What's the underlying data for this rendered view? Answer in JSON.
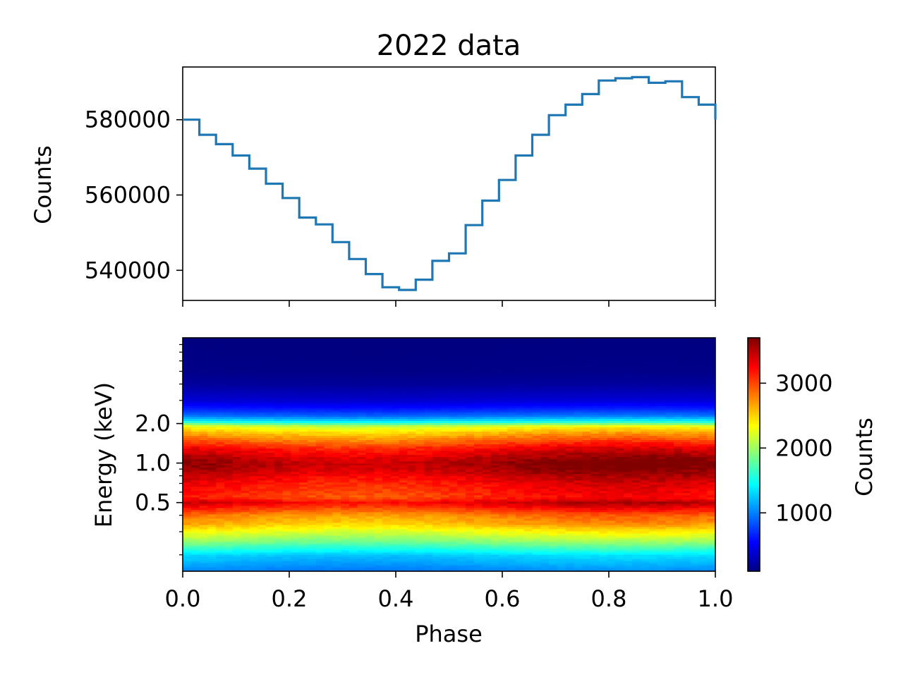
{
  "chart_data": [
    {
      "type": "line",
      "drawstyle": "steps-post",
      "title": "2022 data",
      "xlabel": "",
      "ylabel": "Counts",
      "xlim": [
        0.0,
        1.0
      ],
      "ylim": [
        532000,
        594000
      ],
      "yticks": [
        540000,
        560000,
        580000
      ],
      "ytick_labels": [
        "540000",
        "560000",
        "580000"
      ],
      "color": "#1f77b4",
      "series": [
        {
          "name": "Counts",
          "bin_edges": [
            0.0,
            0.03125,
            0.0625,
            0.09375,
            0.125,
            0.15625,
            0.1875,
            0.21875,
            0.25,
            0.28125,
            0.3125,
            0.34375,
            0.375,
            0.40625,
            0.4375,
            0.46875,
            0.5,
            0.53125,
            0.5625,
            0.59375,
            0.625,
            0.65625,
            0.6875,
            0.71875,
            0.75,
            0.78125,
            0.8125,
            0.84375,
            0.875,
            0.90625,
            0.9375,
            0.96875,
            1.0
          ],
          "values": [
            580000,
            576000,
            573500,
            570500,
            567000,
            563000,
            559200,
            554000,
            552200,
            547500,
            543000,
            539000,
            535500,
            534800,
            537500,
            542500,
            544500,
            552000,
            558500,
            564000,
            570500,
            576000,
            581200,
            584000,
            586800,
            590400,
            591000,
            591300,
            589800,
            590200,
            586000,
            584000
          ]
        }
      ]
    },
    {
      "type": "heatmap",
      "xlabel": "Phase",
      "ylabel": "Energy (keV)",
      "xlim": [
        0.0,
        1.0
      ],
      "ylim": [
        0.15,
        9.0
      ],
      "yscale": "log",
      "xticks": [
        0.0,
        0.2,
        0.4,
        0.6,
        0.8,
        1.0
      ],
      "xtick_labels": [
        "0.0",
        "0.2",
        "0.4",
        "0.6",
        "0.8",
        "1.0"
      ],
      "yticks": [
        0.5,
        1.0,
        2.0
      ],
      "ytick_labels": [
        "0.5",
        "1.0",
        "2.0"
      ],
      "colormap": "jet",
      "colorbar": {
        "label": "Counts",
        "range": [
          100,
          3700
        ],
        "ticks": [
          1000,
          2000,
          3000
        ],
        "tick_labels": [
          "1000",
          "2000",
          "3000"
        ]
      },
      "spectrum_profile": {
        "energy_keV": [
          0.15,
          0.2,
          0.25,
          0.3,
          0.35,
          0.4,
          0.45,
          0.5,
          0.55,
          0.6,
          0.7,
          0.8,
          0.9,
          1.0,
          1.1,
          1.3,
          1.5,
          1.7,
          1.9,
          2.1,
          2.3,
          2.6,
          3.0,
          4.0,
          5.0,
          9.0
        ],
        "mean_counts": [
          1000,
          1300,
          1900,
          2300,
          2650,
          2800,
          3100,
          3400,
          3100,
          3150,
          3250,
          3400,
          3550,
          3600,
          3500,
          3250,
          2900,
          2600,
          2300,
          1400,
          950,
          650,
          400,
          200,
          130,
          100
        ]
      },
      "phase_modulation_amplitude": 0.05,
      "phase_modulation_peak_phase": 0.83
    }
  ]
}
